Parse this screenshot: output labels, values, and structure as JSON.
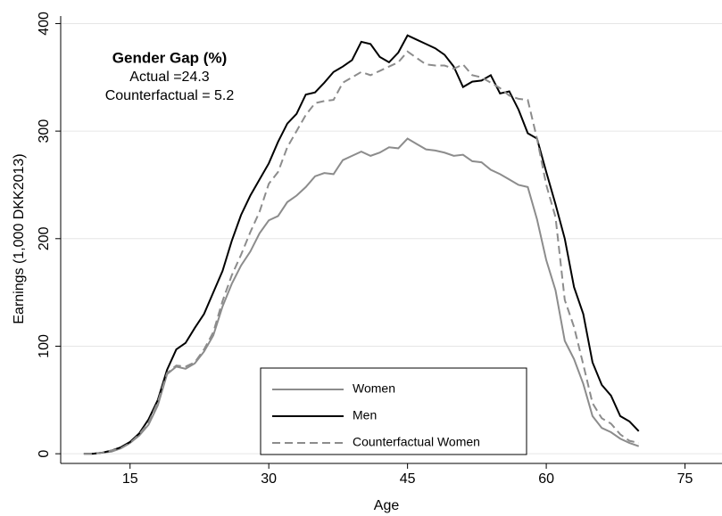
{
  "chart_data": {
    "type": "line",
    "ylabel": "Earnings (1,000 DKK2013)",
    "xlabel": "Age",
    "annotation_title": "Gender Gap (%)",
    "annotation_lines": [
      "Actual =24.3",
      "Counterfactual = 5.2"
    ],
    "x": [
      10,
      11,
      12,
      13,
      14,
      15,
      16,
      17,
      18,
      19,
      20,
      21,
      22,
      23,
      24,
      25,
      26,
      27,
      28,
      29,
      30,
      31,
      32,
      33,
      34,
      35,
      36,
      37,
      38,
      39,
      40,
      41,
      42,
      43,
      44,
      45,
      46,
      47,
      48,
      49,
      50,
      51,
      52,
      53,
      54,
      55,
      56,
      57,
      58,
      59,
      60,
      61,
      62,
      63,
      64,
      65,
      66,
      67,
      68,
      69,
      70
    ],
    "series": [
      {
        "name": "Women",
        "color": "#8c8c8c",
        "dash": false,
        "values": [
          0,
          0,
          1,
          2,
          5,
          10,
          17,
          27,
          45,
          74,
          81,
          79,
          84,
          95,
          110,
          137,
          158,
          175,
          188,
          205,
          217,
          221,
          234,
          240,
          248,
          258,
          261,
          260,
          273,
          277,
          281,
          277,
          280,
          285,
          284,
          293,
          288,
          283,
          282,
          280,
          277,
          278,
          272,
          271,
          264,
          260,
          255,
          250,
          248,
          218,
          180,
          152,
          105,
          88,
          65,
          35,
          24,
          20,
          14,
          10,
          7
        ]
      },
      {
        "name": "Men",
        "color": "#000000",
        "dash": false,
        "values": [
          0,
          0,
          1,
          3,
          6,
          11,
          19,
          32,
          50,
          78,
          97,
          103,
          117,
          130,
          150,
          170,
          198,
          222,
          240,
          255,
          270,
          290,
          307,
          316,
          334,
          336,
          345,
          355,
          360,
          366,
          383,
          381,
          369,
          364,
          373,
          389,
          385,
          381,
          377,
          371,
          360,
          341,
          346,
          347,
          352,
          335,
          337,
          320,
          298,
          293,
          262,
          232,
          200,
          155,
          130,
          85,
          64,
          54,
          35,
          30,
          21
        ]
      },
      {
        "name": "Counterfactual Women",
        "color": "#8c8c8c",
        "dash": true,
        "values": [
          0,
          0,
          1,
          3,
          5,
          10,
          18,
          29,
          48,
          75,
          82,
          81,
          85,
          97,
          113,
          142,
          166,
          185,
          206,
          225,
          251,
          262,
          285,
          300,
          315,
          326,
          328,
          329,
          345,
          350,
          355,
          352,
          356,
          360,
          364,
          374,
          368,
          362,
          361,
          361,
          358,
          362,
          352,
          350,
          345,
          340,
          333,
          330,
          329,
          293,
          250,
          220,
          143,
          118,
          83,
          47,
          33,
          28,
          18,
          12,
          10
        ]
      }
    ],
    "xlim": [
      7.5,
      79
    ],
    "xticks": [
      15,
      30,
      45,
      60,
      75
    ],
    "ylim": [
      -9,
      407
    ],
    "yticks": [
      0,
      100,
      200,
      300,
      400
    ],
    "grid": true
  }
}
